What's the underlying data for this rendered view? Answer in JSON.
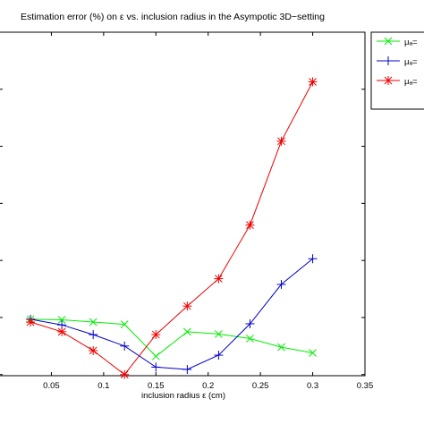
{
  "chart_data": {
    "type": "line",
    "title": "Estimation error (%) on ε vs. inclusion radius in the Asympotic 3D−setting",
    "xlabel": "inclusion radius ε (cm)",
    "ylabel": "",
    "xlim": [
      0.0,
      0.35
    ],
    "ylim": [
      0,
      6
    ],
    "xticks": [
      "0.05",
      "0.1",
      "0.15",
      "0.2",
      "0.25",
      "0.3",
      "0.35"
    ],
    "grid": false,
    "legend_position": "top-right, outside plot",
    "series": [
      {
        "name": "μₐ=",
        "color": "#00ee00",
        "marker": "x",
        "x": [
          0.03,
          0.06,
          0.09,
          0.12,
          0.15,
          0.18,
          0.21,
          0.24,
          0.27,
          0.3
        ],
        "y": [
          0.97,
          0.96,
          0.92,
          0.88,
          0.32,
          0.75,
          0.71,
          0.63,
          0.48,
          0.38
        ]
      },
      {
        "name": "μₐ=",
        "color": "#0000cc",
        "marker": "+",
        "x": [
          0.03,
          0.06,
          0.09,
          0.12,
          0.15,
          0.18,
          0.21,
          0.24,
          0.27,
          0.3
        ],
        "y": [
          0.97,
          0.87,
          0.7,
          0.5,
          0.13,
          0.09,
          0.34,
          0.89,
          1.58,
          2.03
        ]
      },
      {
        "name": "μₐ=",
        "color": "#ee0000",
        "marker": "*",
        "x": [
          0.03,
          0.06,
          0.09,
          0.12,
          0.15,
          0.18,
          0.21,
          0.24,
          0.27,
          0.3
        ],
        "y": [
          0.92,
          0.75,
          0.42,
          0.0,
          0.7,
          1.2,
          1.68,
          2.62,
          4.09,
          5.13
        ]
      }
    ]
  }
}
